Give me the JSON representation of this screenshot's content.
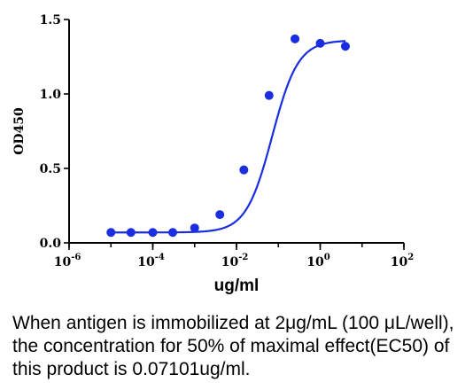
{
  "chart_data": {
    "type": "scatter",
    "title": "",
    "xlabel": "ug/ml",
    "ylabel": "OD450",
    "x_scale": "log10",
    "xlim": [
      1e-06,
      100
    ],
    "ylim": [
      0,
      1.5
    ],
    "x_ticks": [
      {
        "value": 1e-06,
        "base": "10",
        "exp": "-6"
      },
      {
        "value": 0.0001,
        "base": "10",
        "exp": "-4"
      },
      {
        "value": 0.01,
        "base": "10",
        "exp": "-2"
      },
      {
        "value": 1,
        "base": "10",
        "exp": "0"
      },
      {
        "value": 100,
        "base": "10",
        "exp": "2"
      }
    ],
    "y_ticks": [
      {
        "value": 0,
        "label": "0.0"
      },
      {
        "value": 0.5,
        "label": "0.5"
      },
      {
        "value": 1.0,
        "label": "1.0"
      },
      {
        "value": 1.5,
        "label": "1.5"
      }
    ],
    "points": [
      {
        "x": 1e-05,
        "y": 0.07
      },
      {
        "x": 3e-05,
        "y": 0.07
      },
      {
        "x": 0.0001,
        "y": 0.07
      },
      {
        "x": 0.0003,
        "y": 0.07
      },
      {
        "x": 0.001,
        "y": 0.1
      },
      {
        "x": 0.004,
        "y": 0.19
      },
      {
        "x": 0.015,
        "y": 0.49
      },
      {
        "x": 0.06,
        "y": 0.99
      },
      {
        "x": 0.25,
        "y": 1.37
      },
      {
        "x": 1,
        "y": 1.34
      },
      {
        "x": 4,
        "y": 1.32
      }
    ],
    "curve": {
      "model": "4PL",
      "bottom": 0.07,
      "top": 1.36,
      "ec50": 0.07101,
      "hill": 1.4
    },
    "grid": false,
    "colors": {
      "series": "#1a2ee0",
      "axis": "#000000"
    }
  },
  "caption": "When antigen is immobilized at 2μg/mL (100 μL/well), the concentration for 50% of maximal effect(EC50) of this product is 0.07101ug/ml."
}
